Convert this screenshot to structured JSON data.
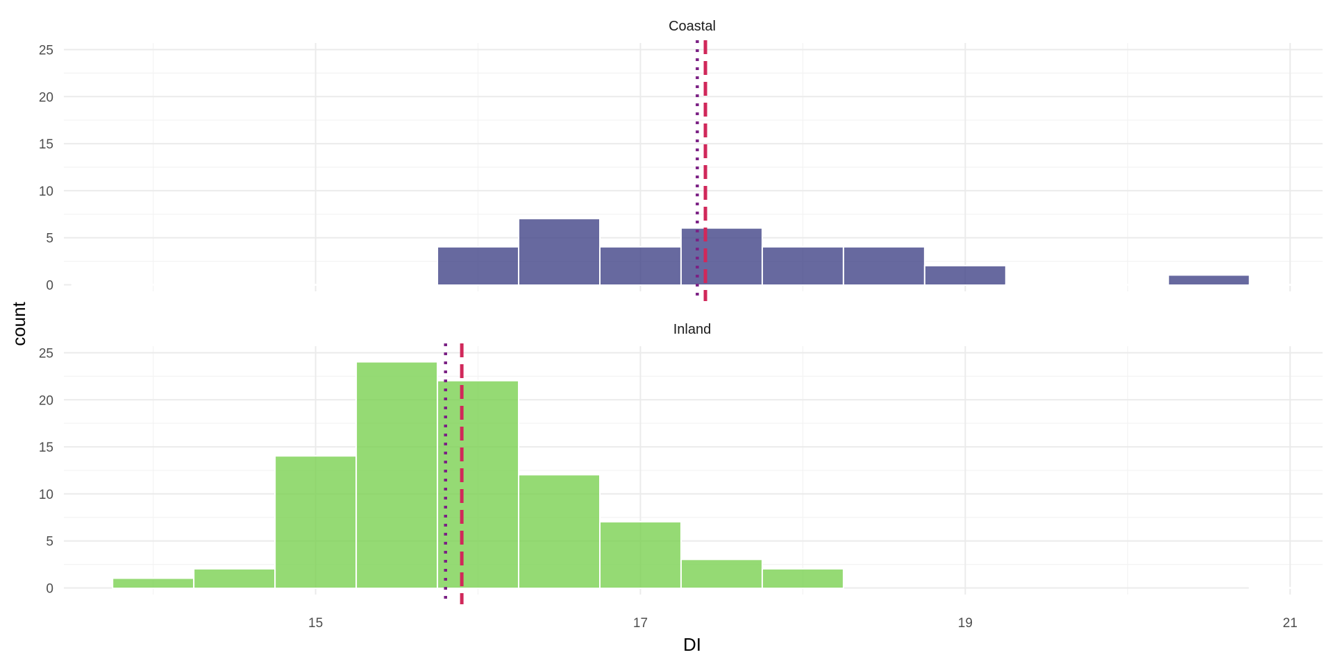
{
  "chart_data": {
    "type": "bar",
    "subtype": "faceted-histogram",
    "xlabel": "DI",
    "ylabel": "count",
    "xlim": [
      13.45,
      21.2
    ],
    "ylim": [
      0,
      25
    ],
    "x_ticks": [
      15,
      17,
      19,
      21
    ],
    "y_ticks": [
      0,
      5,
      10,
      15,
      20,
      25
    ],
    "bin_width": 0.5,
    "panels": [
      {
        "name": "Coastal",
        "color": "#414487",
        "mean_line_color": "#d0285a",
        "median_line_color": "#7b2184",
        "mean": 17.4,
        "median": 17.35,
        "bins": [
          {
            "center": 13.75,
            "count": 0
          },
          {
            "center": 14.25,
            "count": 0
          },
          {
            "center": 14.75,
            "count": 0
          },
          {
            "center": 15.25,
            "count": 0
          },
          {
            "center": 15.75,
            "count": 0
          },
          {
            "center": 16.0,
            "count": 4
          },
          {
            "center": 16.5,
            "count": 7
          },
          {
            "center": 17.0,
            "count": 4
          },
          {
            "center": 17.5,
            "count": 6
          },
          {
            "center": 18.0,
            "count": 4
          },
          {
            "center": 18.5,
            "count": 4
          },
          {
            "center": 19.0,
            "count": 2
          },
          {
            "center": 19.5,
            "count": 0
          },
          {
            "center": 20.0,
            "count": 0
          },
          {
            "center": 20.5,
            "count": 1
          },
          {
            "center": 21.0,
            "count": 0
          }
        ]
      },
      {
        "name": "Inland",
        "color": "#7ad151",
        "mean_line_color": "#d0285a",
        "median_line_color": "#7b2184",
        "mean": 15.9,
        "median": 15.8,
        "bins": [
          {
            "center": 14.0,
            "count": 1
          },
          {
            "center": 14.5,
            "count": 2
          },
          {
            "center": 15.0,
            "count": 14
          },
          {
            "center": 15.5,
            "count": 24
          },
          {
            "center": 16.0,
            "count": 22
          },
          {
            "center": 16.5,
            "count": 12
          },
          {
            "center": 17.0,
            "count": 7
          },
          {
            "center": 17.5,
            "count": 3
          },
          {
            "center": 18.0,
            "count": 2
          },
          {
            "center": 21.0,
            "count": 0
          }
        ]
      }
    ]
  }
}
